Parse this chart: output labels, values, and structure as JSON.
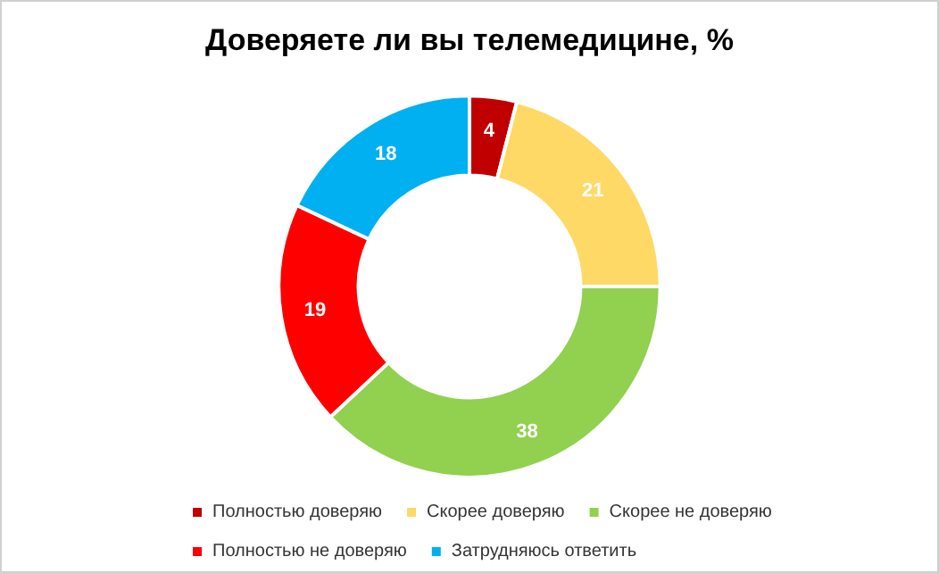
{
  "chart_data": {
    "type": "donut",
    "title": "Доверяете ли вы телемедицине, %",
    "categories": [
      "Полностью доверяю",
      "Скорее доверяю",
      "Скорее не доверяю",
      "Полностью не доверяю",
      "Затрудняюсь ответить"
    ],
    "values": [
      4,
      21,
      38,
      19,
      18
    ],
    "colors": [
      "#c00000",
      "#ffd966",
      "#92d050",
      "#ff0000",
      "#00b0f0"
    ],
    "data_labels": true,
    "legend": "bottom"
  }
}
